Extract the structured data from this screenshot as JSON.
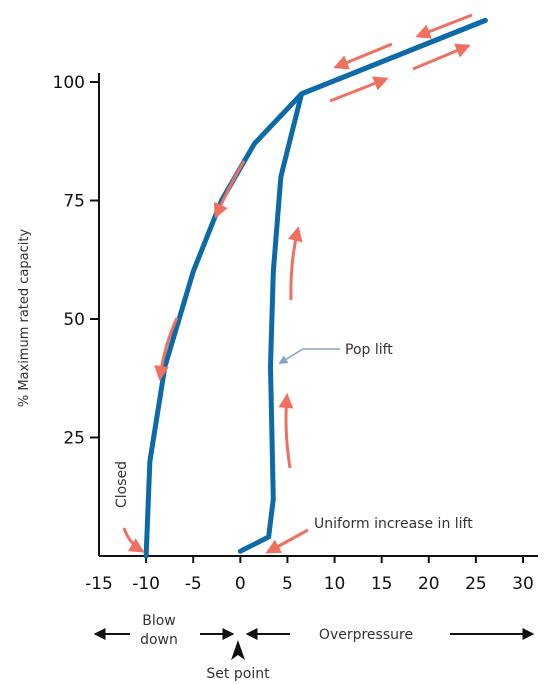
{
  "chart_data": {
    "type": "line",
    "title": "",
    "xlabel": "",
    "ylabel": "% Maximum rated capacity",
    "xlim": [
      -15,
      30
    ],
    "ylim": [
      0,
      110
    ],
    "xticks": [
      -15,
      -10,
      -5,
      0,
      5,
      10,
      15,
      20,
      25,
      30
    ],
    "yticks": [
      25,
      50,
      75,
      100
    ],
    "grid": false,
    "line_color": "#0d6aa8",
    "arrow_color": "#f07060",
    "callout_color": "#7fa6cc",
    "series": [
      {
        "points": [
          [
            -10,
            0
          ],
          [
            -9.6,
            20
          ],
          [
            -8,
            40
          ],
          [
            -5,
            60
          ],
          [
            -2,
            75
          ],
          [
            1.5,
            87
          ],
          [
            6.5,
            97.5
          ],
          [
            26,
            113
          ]
        ]
      },
      {
        "points": [
          [
            26,
            113
          ],
          [
            6.5,
            97.5
          ],
          [
            4.3,
            80
          ],
          [
            3.5,
            60
          ],
          [
            3.2,
            40
          ],
          [
            3.5,
            12
          ],
          [
            3.0,
            4
          ],
          [
            0,
            1
          ]
        ]
      }
    ],
    "annotations": {
      "closed": "Closed",
      "pop_lift": "Pop lift",
      "uniform_increase": "Uniform increase in lift",
      "blow_down": [
        "Blow",
        "down"
      ],
      "overpressure": "Overpressure",
      "set_point": "Set point"
    }
  }
}
